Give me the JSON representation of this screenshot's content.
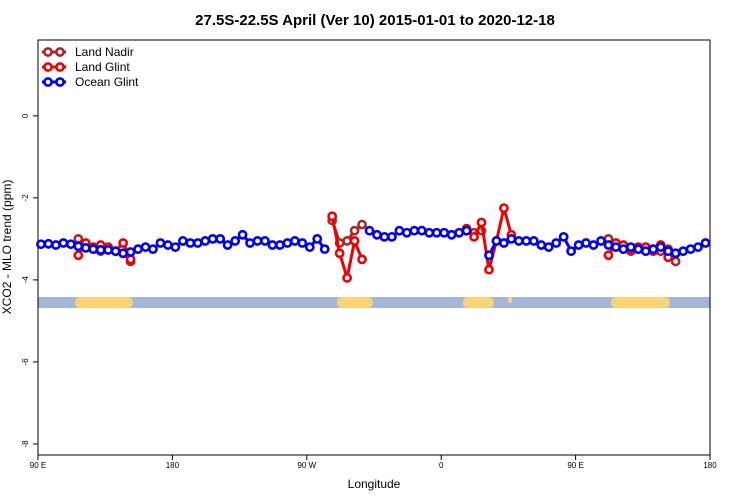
{
  "chart_data": {
    "type": "line",
    "title": "27.5S-22.5S April (Ver 10)   2015-01-01 to 2020-12-18",
    "x_label": "Longitude",
    "y_label": "XCO2 - MLO trend (ppm)",
    "xlim": [
      90,
      540
    ],
    "ylim": [
      -8.27,
      1.85
    ],
    "xticks": [
      {
        "value": 90,
        "label": "90 E"
      },
      {
        "value": 180,
        "label": "180"
      },
      {
        "value": 270,
        "label": "90 W"
      },
      {
        "value": 360,
        "label": "0"
      },
      {
        "value": 450,
        "label": "90 E"
      },
      {
        "value": 540,
        "label": "180"
      }
    ],
    "yticks": [
      0,
      -2,
      -4,
      -6,
      -8
    ],
    "legend": "top-left",
    "x": [
      92,
      97,
      102,
      107,
      112,
      117,
      122,
      127,
      132,
      137,
      142,
      147,
      152,
      157,
      162,
      167,
      172,
      177,
      182,
      187,
      192,
      197,
      202,
      207,
      212,
      217,
      222,
      227,
      232,
      237,
      242,
      247,
      252,
      257,
      262,
      267,
      272,
      277,
      282,
      287,
      292,
      297,
      302,
      307,
      312,
      317,
      322,
      327,
      332,
      337,
      342,
      347,
      352,
      357,
      362,
      367,
      372,
      377,
      382,
      387,
      392,
      397,
      402,
      407,
      412,
      417,
      422,
      427,
      432,
      437,
      442,
      447,
      452,
      457,
      462,
      467,
      472,
      477,
      482,
      487,
      492,
      497,
      502,
      507,
      512,
      517,
      522,
      527,
      532,
      537
    ],
    "series": [
      {
        "name": "Land Nadir",
        "color": "#a52a2a",
        "values": [
          null,
          null,
          null,
          null,
          null,
          -3.0,
          -3.2,
          -3.25,
          -3.3,
          -3.25,
          -3.3,
          -3.35,
          -3.55,
          null,
          null,
          null,
          null,
          null,
          null,
          null,
          null,
          null,
          null,
          null,
          null,
          null,
          null,
          null,
          null,
          null,
          null,
          null,
          null,
          null,
          null,
          null,
          null,
          null,
          null,
          -2.55,
          -3.1,
          -3.05,
          -2.8,
          -2.65,
          null,
          null,
          null,
          null,
          null,
          null,
          null,
          null,
          null,
          null,
          null,
          null,
          null,
          -2.8,
          -2.85,
          -2.8,
          null,
          null,
          null,
          null,
          null,
          null,
          null,
          null,
          null,
          null,
          null,
          null,
          null,
          null,
          null,
          null,
          -3.0,
          -3.2,
          -3.25,
          -3.3,
          -3.25,
          -3.2,
          -3.25,
          -3.3,
          -3.25,
          -3.55,
          null,
          null,
          null,
          null
        ]
      },
      {
        "name": "Land Glint",
        "color": "#ee0000",
        "values": [
          null,
          null,
          null,
          null,
          null,
          -3.4,
          -3.1,
          -3.2,
          -3.15,
          -3.2,
          -3.3,
          -3.1,
          -3.5,
          null,
          null,
          null,
          null,
          null,
          null,
          null,
          null,
          null,
          null,
          null,
          null,
          null,
          null,
          null,
          null,
          null,
          null,
          null,
          null,
          null,
          null,
          null,
          null,
          null,
          null,
          -2.45,
          -3.35,
          -3.95,
          -3.05,
          -3.5,
          null,
          null,
          null,
          null,
          null,
          null,
          null,
          null,
          null,
          null,
          null,
          null,
          null,
          -2.75,
          -2.95,
          -2.6,
          -3.75,
          -3.05,
          -2.25,
          -2.9,
          null,
          null,
          null,
          null,
          null,
          null,
          null,
          null,
          null,
          null,
          null,
          null,
          -3.4,
          -3.1,
          -3.15,
          -3.25,
          -3.2,
          -3.2,
          -3.3,
          -3.15,
          -3.45,
          -3.35,
          null,
          null,
          null,
          null
        ]
      },
      {
        "name": "Ocean Glint",
        "color": "#0000ee",
        "values": [
          -3.13,
          -3.12,
          -3.15,
          -3.1,
          -3.13,
          -3.18,
          -3.22,
          -3.25,
          -3.27,
          -3.27,
          -3.3,
          -3.35,
          -3.32,
          -3.25,
          -3.2,
          -3.25,
          -3.1,
          -3.15,
          -3.2,
          -3.05,
          -3.1,
          -3.1,
          -3.05,
          -3.0,
          -3.0,
          -3.15,
          -3.05,
          -2.9,
          -3.1,
          -3.05,
          -3.05,
          -3.15,
          -3.15,
          -3.1,
          -3.05,
          -3.1,
          -3.2,
          -3.0,
          -3.25,
          null,
          null,
          null,
          null,
          null,
          -2.8,
          -2.9,
          -2.95,
          -2.95,
          -2.8,
          -2.85,
          -2.8,
          -2.8,
          -2.85,
          -2.85,
          -2.85,
          -2.9,
          -2.85,
          -2.8,
          null,
          null,
          -3.4,
          -3.05,
          -3.1,
          -3.0,
          -3.05,
          -3.05,
          -3.05,
          -3.15,
          -3.2,
          -3.1,
          -2.95,
          -3.3,
          -3.15,
          -3.1,
          -3.15,
          -3.05,
          -3.15,
          -3.2,
          -3.25,
          -3.2,
          -3.25,
          -3.3,
          -3.25,
          -3.2,
          -3.3,
          -3.35,
          -3.3,
          -3.25,
          -3.2,
          -3.1
        ]
      }
    ]
  }
}
